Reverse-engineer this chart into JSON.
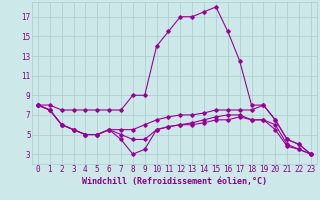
{
  "title": "",
  "xlabel": "Windchill (Refroidissement éolien,°C)",
  "ylabel": "",
  "bg_color": "#cce8e8",
  "grid_color": "#aacccc",
  "line_color": "#990099",
  "x_ticks": [
    0,
    1,
    2,
    3,
    4,
    5,
    6,
    7,
    8,
    9,
    10,
    11,
    12,
    13,
    14,
    15,
    16,
    17,
    18,
    19,
    20,
    21,
    22,
    23
  ],
  "y_ticks": [
    3,
    5,
    7,
    9,
    11,
    13,
    15,
    17
  ],
  "xlim": [
    -0.5,
    23.5
  ],
  "ylim": [
    2.0,
    18.5
  ],
  "series": [
    [
      8.0,
      8.0,
      7.5,
      7.5,
      7.5,
      7.5,
      7.5,
      7.5,
      9.0,
      9.0,
      14.0,
      15.5,
      17.0,
      17.0,
      17.5,
      18.0,
      15.5,
      12.5,
      8.0,
      8.0,
      6.5,
      4.5,
      4.0,
      3.0
    ],
    [
      8.0,
      7.5,
      6.0,
      5.5,
      5.0,
      5.0,
      5.5,
      5.5,
      5.5,
      6.0,
      6.5,
      6.8,
      7.0,
      7.0,
      7.2,
      7.5,
      7.5,
      7.5,
      7.5,
      8.0,
      6.5,
      4.5,
      4.0,
      3.0
    ],
    [
      8.0,
      7.5,
      6.0,
      5.5,
      5.0,
      5.0,
      5.5,
      5.0,
      4.5,
      4.5,
      5.5,
      5.8,
      6.0,
      6.2,
      6.5,
      6.8,
      7.0,
      7.0,
      6.5,
      6.5,
      6.0,
      4.0,
      3.5,
      3.0
    ],
    [
      8.0,
      7.5,
      6.0,
      5.5,
      5.0,
      5.0,
      5.5,
      4.5,
      3.0,
      3.5,
      5.5,
      5.8,
      6.0,
      6.0,
      6.2,
      6.5,
      6.5,
      6.8,
      6.5,
      6.5,
      5.5,
      3.8,
      3.5,
      3.0
    ]
  ],
  "marker": "D",
  "markersize": 1.8,
  "linewidth": 0.8,
  "xlabel_fontsize": 6,
  "tick_fontsize": 5.5,
  "xlabel_color": "#880088",
  "tick_color": "#880088",
  "spine_color": "#aacccc"
}
